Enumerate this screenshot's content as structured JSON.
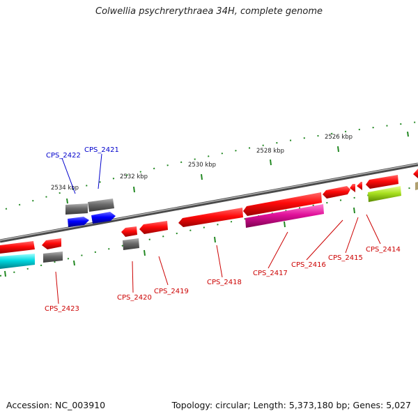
{
  "title": "Colwellia psychrerythraea 34H, complete genome",
  "footer": {
    "accession": "Accession: NC_003910",
    "topology": "Topology: circular; Length: 5,373,180 bp; Genes: 5,027"
  },
  "ticks": [
    {
      "label": "2526 kbp",
      "pos_kbp": 2526
    },
    {
      "label": "2528 kbp",
      "pos_kbp": 2528
    },
    {
      "label": "2530 kbp",
      "pos_kbp": 2530
    },
    {
      "label": "2532 kbp",
      "pos_kbp": 2532
    },
    {
      "label": "2534 kbp",
      "pos_kbp": 2534
    }
  ],
  "genes": [
    {
      "label": "CPS_2423",
      "color": "#cc0000",
      "feature_color": "#ff1010",
      "strand": "forward"
    },
    {
      "label": "CPS_2422",
      "color": "#0000cc",
      "feature_color": "#666666",
      "strand": "reverse"
    },
    {
      "label": "CPS_2421",
      "color": "#0000cc",
      "feature_color": "#666666",
      "strand": "reverse"
    },
    {
      "label": "CPS_2420",
      "color": "#cc0000",
      "feature_color": "#ff1010",
      "strand": "forward"
    },
    {
      "label": "CPS_2419",
      "color": "#cc0000",
      "feature_color": "#ff1010",
      "strand": "forward"
    },
    {
      "label": "CPS_2418",
      "color": "#cc0000",
      "feature_color": "#ff1010",
      "strand": "forward"
    },
    {
      "label": "CPS_2417",
      "color": "#cc0000",
      "feature_color": "#ff1010",
      "strand": "forward"
    },
    {
      "label": "CPS_2416",
      "color": "#cc0000",
      "feature_color": "#ff1010",
      "strand": "forward"
    },
    {
      "label": "CPS_2415",
      "color": "#cc0000",
      "feature_color": "#ff1010",
      "strand": "forward"
    },
    {
      "label": "CPS_2414",
      "color": "#cc0000",
      "feature_color": "#ff1010",
      "strand": "forward"
    }
  ],
  "colors": {
    "forward_cds": "#ff1010",
    "reverse_cds": "#0000ff",
    "pseudo": "#666666",
    "cog_cyan": "#00d8e0",
    "cog_magenta": "#e0109a",
    "cog_lime": "#a8e020",
    "backbone": "#888888",
    "tick": "#228822"
  }
}
